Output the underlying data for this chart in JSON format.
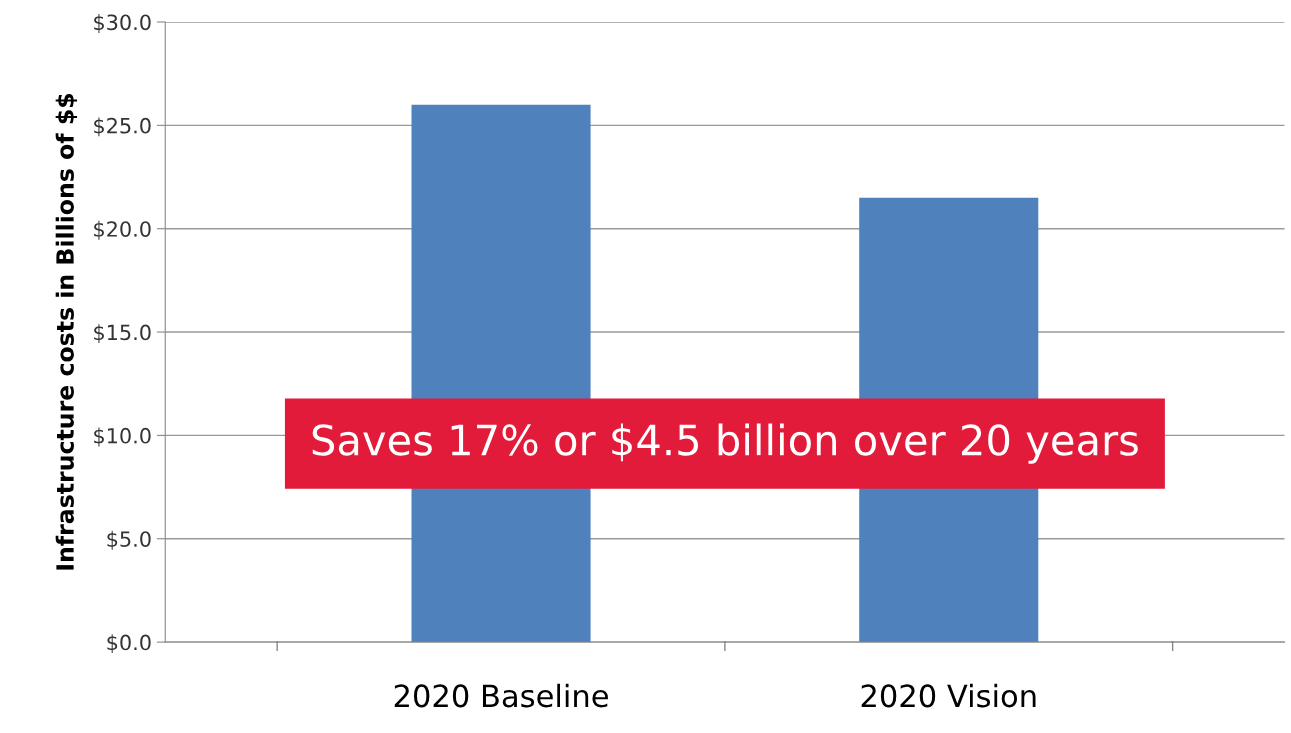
{
  "chart_data": {
    "type": "bar",
    "ylabel": "Infrastructure costs in Billions of $$",
    "categories": [
      "2020 Baseline",
      "2020 Vision"
    ],
    "values": [
      26.0,
      21.5
    ],
    "color": "#4f81bd",
    "ylim": [
      0,
      30
    ],
    "yticks": [
      {
        "value": 0,
        "label": "$0.0"
      },
      {
        "value": 5,
        "label": "$5.0"
      },
      {
        "value": 10,
        "label": "$10.0"
      },
      {
        "value": 15,
        "label": "$15.0"
      },
      {
        "value": 20,
        "label": "$20.0"
      },
      {
        "value": 25,
        "label": "$25.0"
      },
      {
        "value": 30,
        "label": "$30.0"
      }
    ],
    "grid": "y",
    "annotations": [
      "Saves 17% or $4.5 billion over 20 years"
    ]
  }
}
